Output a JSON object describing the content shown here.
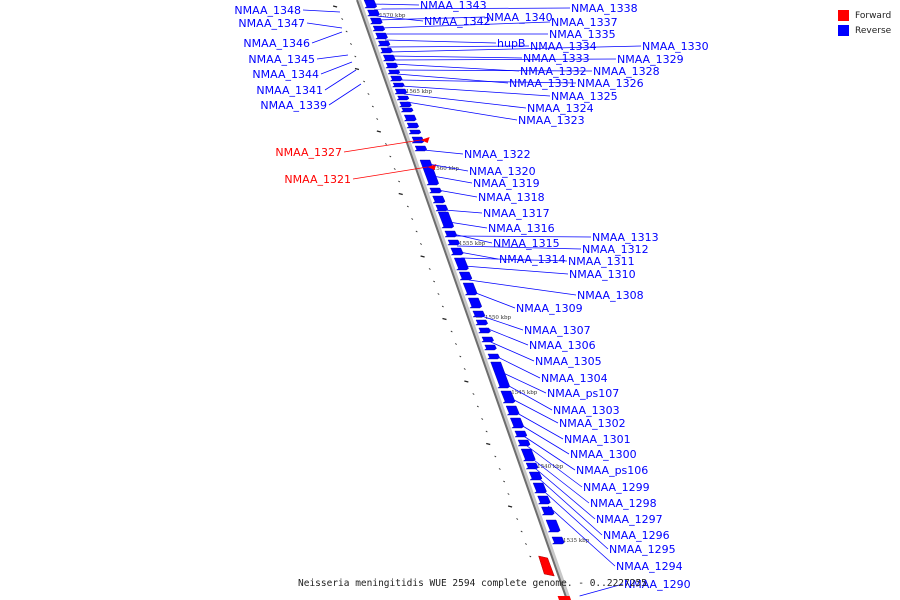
{
  "legend": {
    "forward": {
      "label": "Forward",
      "color": "#ff0000"
    },
    "reverse": {
      "label": "Reverse",
      "color": "#0000ff"
    }
  },
  "caption": "Neisseria meningitidis WUE 2594 complete genome. - 0..2227255",
  "ruler_ticks": [
    "1570 kbp",
    "1565 kbp",
    "1560 kbp",
    "1555 kbp",
    "1550 kbp",
    "1545 kbp",
    "1540 kbp",
    "1535 kbp"
  ],
  "genes": {
    "forward": [
      "NMAA_1327",
      "NMAA_1321"
    ],
    "left_reverse": [
      "NMAA_1348",
      "NMAA_1347",
      "NMAA_1346",
      "NMAA_1345",
      "NMAA_1344",
      "NMAA_1341",
      "NMAA_1339"
    ],
    "right_reverse": [
      "NMAA_1343",
      "NMAA_1338",
      "NMAA_1342",
      "NMAA_1340",
      "NMAA_1337",
      "NMAA_1335",
      "hupB",
      "NMAA_1334",
      "NMAA_1330",
      "NMAA_1333",
      "NMAA_1329",
      "NMAA_1332",
      "NMAA_1328",
      "NMAA_1331",
      "NMAA_1326",
      "NMAA_1325",
      "NMAA_1324",
      "NMAA_1323",
      "NMAA_1322",
      "NMAA_1320",
      "NMAA_1319",
      "NMAA_1318",
      "NMAA_1317",
      "NMAA_1316",
      "NMAA_1313",
      "NMAA_1315",
      "NMAA_1312",
      "NMAA_1314",
      "NMAA_1311",
      "NMAA_1310",
      "NMAA_1308",
      "NMAA_1309",
      "NMAA_1307",
      "NMAA_1306",
      "NMAA_1305",
      "NMAA_1304",
      "NMAA_ps107",
      "NMAA_1303",
      "NMAA_1302",
      "NMAA_1301",
      "NMAA_1300",
      "NMAA_ps106",
      "NMAA_1299",
      "NMAA_1298",
      "NMAA_1297",
      "NMAA_1296",
      "NMAA_1295",
      "NMAA_1294",
      "NMAA_1290"
    ]
  }
}
